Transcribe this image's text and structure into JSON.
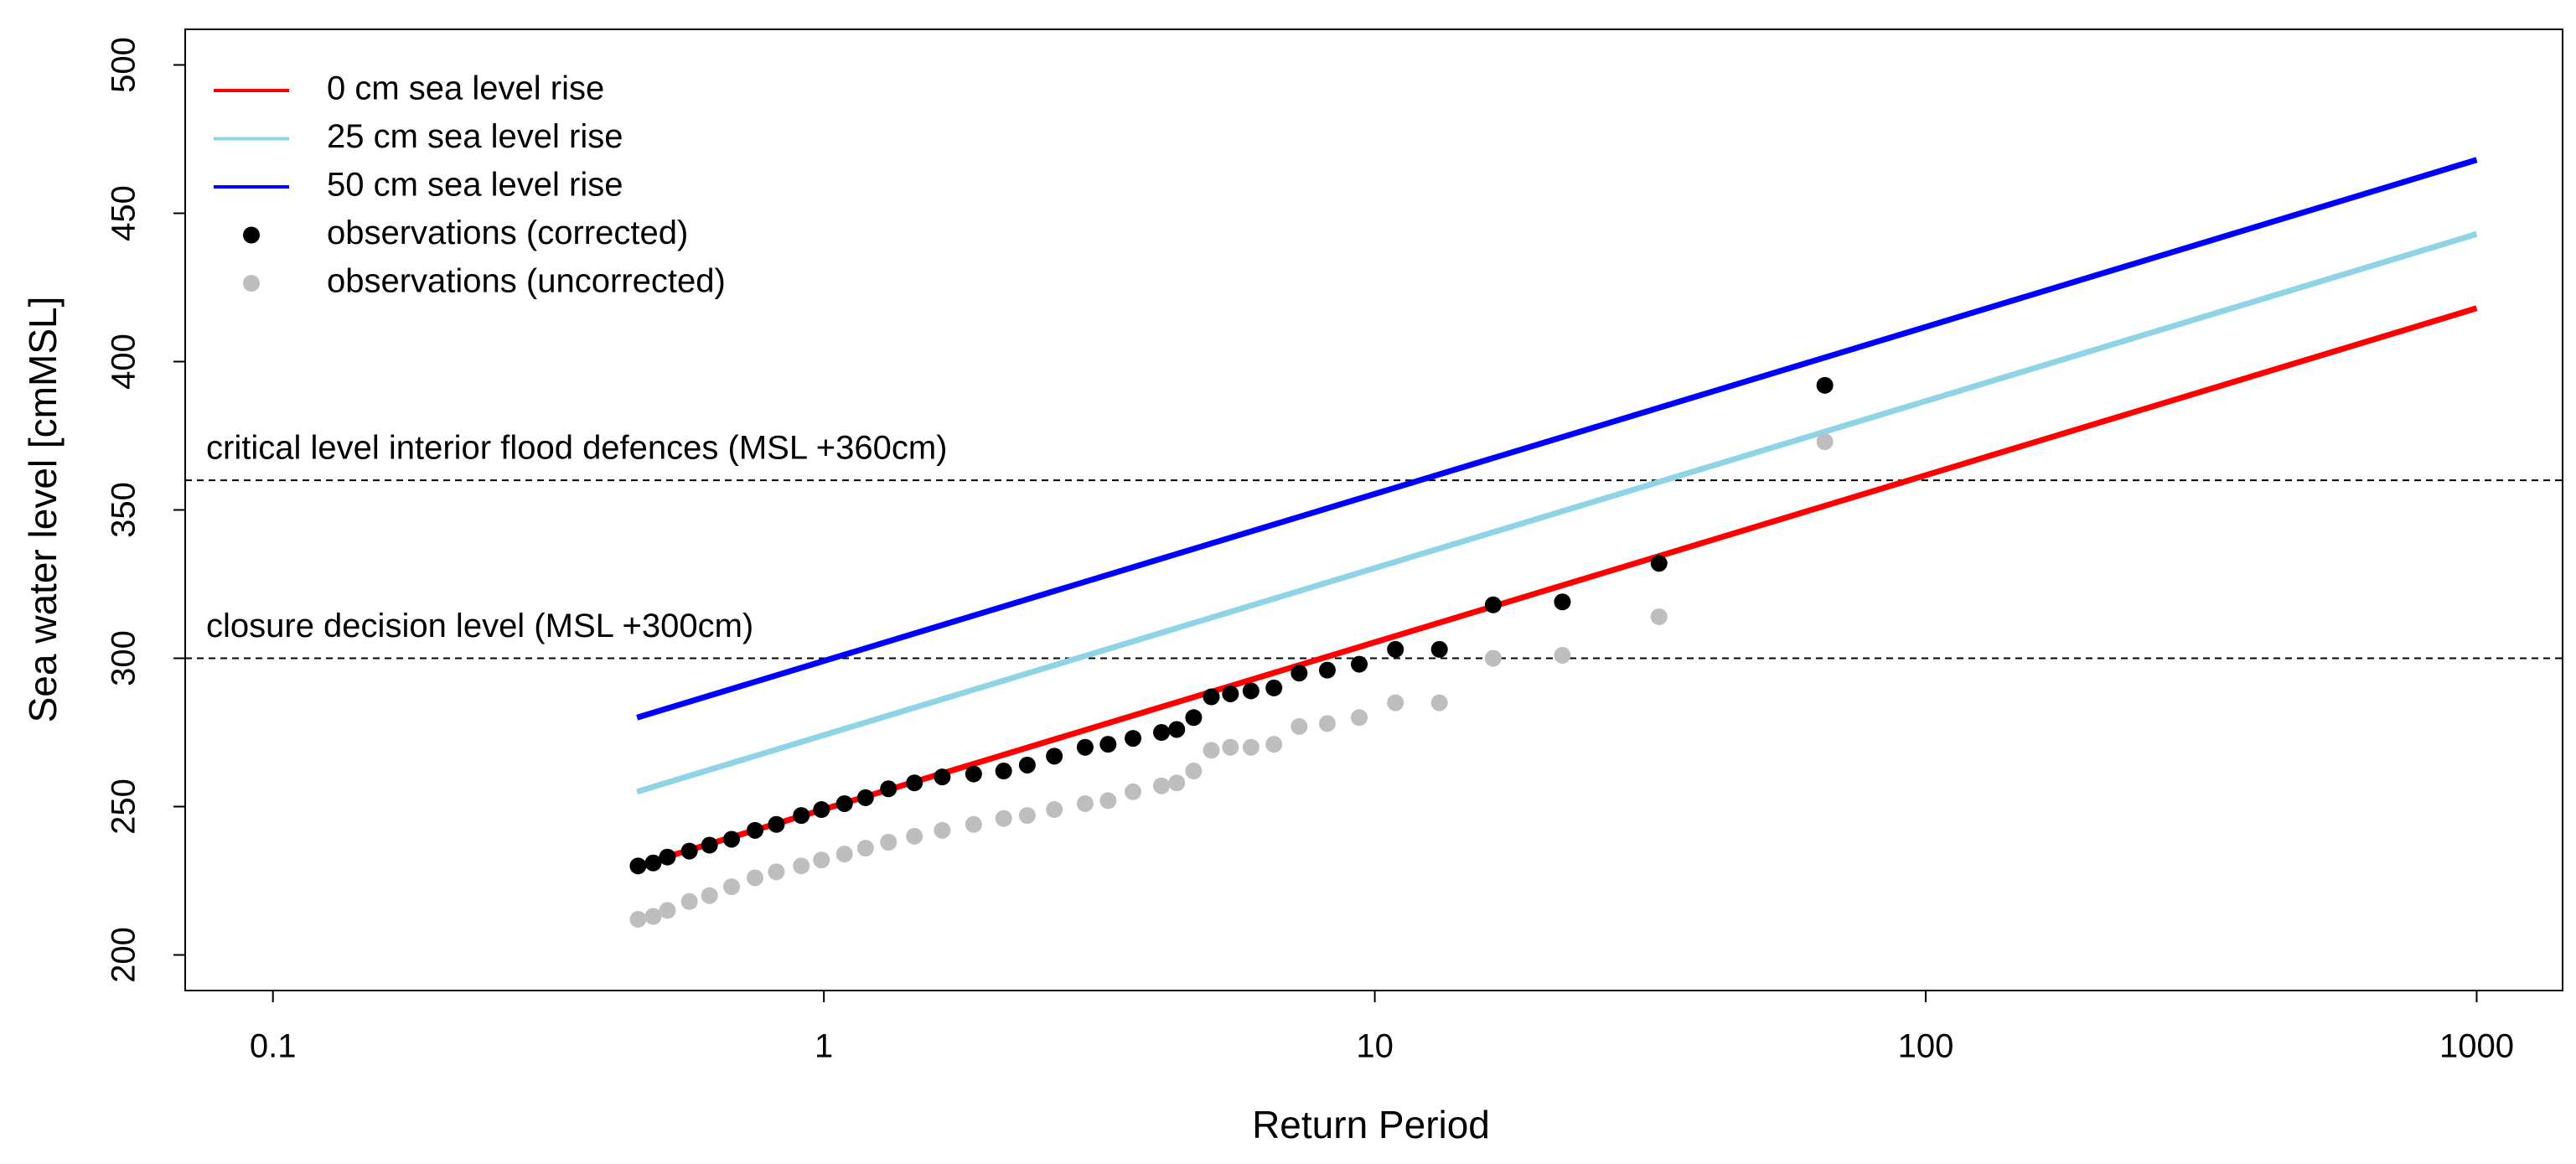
{
  "chart_data": {
    "type": "line",
    "xlabel": "Return Period",
    "ylabel": "Sea water level [cmMSL]",
    "xscale": "log",
    "xlim": [
      0.0693,
      1432
    ],
    "ylim": [
      188,
      512
    ],
    "xticks": [
      0.1,
      1,
      10,
      100,
      1000
    ],
    "yticks": [
      200,
      250,
      300,
      350,
      400,
      450,
      500
    ],
    "legend": "top-left",
    "hlines": [
      {
        "value": 360,
        "label": "critical level interior flood defences (MSL +360cm)"
      },
      {
        "value": 300,
        "label": "closure decision level (MSL +300cm)"
      }
    ],
    "series": [
      {
        "name": "0 cm sea level rise",
        "color": "#ff0000",
        "mode": "line",
        "x": [
          0.458,
          1000
        ],
        "values": [
          230,
          418
        ]
      },
      {
        "name": "25 cm sea level rise",
        "color": "#8fd3e6",
        "mode": "line",
        "x": [
          0.458,
          1000
        ],
        "values": [
          255,
          443
        ]
      },
      {
        "name": "50 cm sea level rise",
        "color": "#0000ff",
        "mode": "line",
        "x": [
          0.458,
          1000
        ],
        "values": [
          280,
          468
        ]
      },
      {
        "name": "observations (corrected)",
        "color": "#000000",
        "mode": "points",
        "x": [
          65.6,
          32.8,
          21.9,
          16.4,
          13.1,
          10.9,
          9.37,
          8.2,
          7.29,
          6.56,
          5.96,
          5.47,
          5.05,
          4.69,
          4.37,
          4.1,
          3.64,
          3.28,
          2.98,
          2.62,
          2.34,
          2.12,
          1.87,
          1.64,
          1.46,
          1.31,
          1.19,
          1.09,
          0.99,
          0.91,
          0.82,
          0.75,
          0.68,
          0.62,
          0.57,
          0.52,
          0.49,
          0.46
        ],
        "values": [
          392,
          332,
          319,
          318,
          303,
          303,
          298,
          296,
          295,
          290,
          289,
          288,
          287,
          280,
          276,
          275,
          273,
          271,
          270,
          267,
          264,
          262,
          261,
          260,
          258,
          256,
          253,
          251,
          249,
          247,
          244,
          242,
          239,
          237,
          235,
          233,
          231,
          230
        ]
      },
      {
        "name": "observations (uncorrected)",
        "color": "#bebebe",
        "mode": "points",
        "x": [
          65.6,
          32.8,
          21.9,
          16.4,
          13.1,
          10.9,
          9.37,
          8.2,
          7.29,
          6.56,
          5.96,
          5.47,
          5.05,
          4.69,
          4.37,
          4.1,
          3.64,
          3.28,
          2.98,
          2.62,
          2.34,
          2.12,
          1.87,
          1.64,
          1.46,
          1.31,
          1.19,
          1.09,
          0.99,
          0.91,
          0.82,
          0.75,
          0.68,
          0.62,
          0.57,
          0.52,
          0.49,
          0.46
        ],
        "values": [
          373,
          314,
          301,
          300,
          285,
          285,
          280,
          278,
          277,
          271,
          270,
          270,
          269,
          262,
          258,
          257,
          255,
          252,
          251,
          249,
          247,
          246,
          244,
          242,
          240,
          238,
          236,
          234,
          232,
          230,
          228,
          226,
          223,
          220,
          218,
          215,
          213,
          212
        ]
      }
    ]
  }
}
